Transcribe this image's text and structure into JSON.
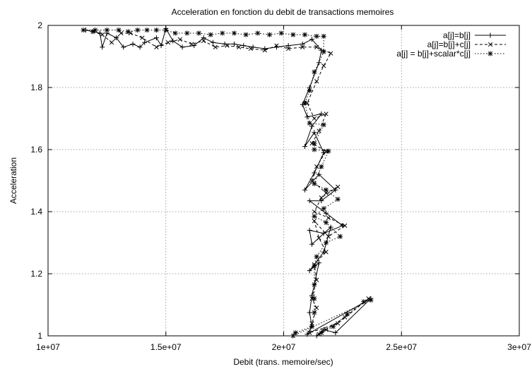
{
  "chart_data": {
    "type": "line",
    "title": "Acceleration en fonction du debit de transactions memoires",
    "xlabel": "Debit (trans. memoire/sec)",
    "ylabel": "Acceleration",
    "xlim": [
      10000000,
      30000000
    ],
    "ylim": [
      1,
      2
    ],
    "x_ticks": [
      10000000,
      15000000,
      20000000,
      25000000,
      30000000
    ],
    "x_tick_labels": [
      "1e+07",
      "1.5e+07",
      "2e+07",
      "2.5e+07",
      "3e+07"
    ],
    "y_ticks": [
      1,
      1.2,
      1.4,
      1.6,
      1.8,
      2
    ],
    "y_tick_labels": [
      "1",
      "1.2",
      "1.4",
      "1.6",
      "1.8",
      "2"
    ],
    "grid": true,
    "legend_position": "top-right",
    "series": [
      {
        "name": "a[j]=b[j]",
        "marker": "plus",
        "dash": "",
        "points": [
          [
            11600000,
            1.985
          ],
          [
            11900000,
            1.98
          ],
          [
            12200000,
            1.975
          ],
          [
            12300000,
            1.93
          ],
          [
            12500000,
            1.975
          ],
          [
            12900000,
            1.96
          ],
          [
            13200000,
            1.93
          ],
          [
            13600000,
            1.94
          ],
          [
            13900000,
            1.93
          ],
          [
            14100000,
            1.945
          ],
          [
            14600000,
            1.96
          ],
          [
            14800000,
            1.935
          ],
          [
            15000000,
            1.99
          ],
          [
            15300000,
            1.95
          ],
          [
            15700000,
            1.93
          ],
          [
            16200000,
            1.935
          ],
          [
            16600000,
            1.96
          ],
          [
            17000000,
            1.945
          ],
          [
            17500000,
            1.94
          ],
          [
            17900000,
            1.94
          ],
          [
            18300000,
            1.935
          ],
          [
            18700000,
            1.93
          ],
          [
            19200000,
            1.925
          ],
          [
            19700000,
            1.93
          ],
          [
            20200000,
            1.935
          ],
          [
            20800000,
            1.94
          ],
          [
            21200000,
            1.955
          ],
          [
            21600000,
            1.92
          ],
          [
            21500000,
            1.88
          ],
          [
            21100000,
            1.8
          ],
          [
            20800000,
            1.745
          ],
          [
            21000000,
            1.705
          ],
          [
            21600000,
            1.715
          ],
          [
            21200000,
            1.675
          ],
          [
            20900000,
            1.61
          ],
          [
            21300000,
            1.655
          ],
          [
            21700000,
            1.59
          ],
          [
            21300000,
            1.525
          ],
          [
            20900000,
            1.47
          ],
          [
            21500000,
            1.52
          ],
          [
            22200000,
            1.47
          ],
          [
            21600000,
            1.435
          ],
          [
            21100000,
            1.435
          ],
          [
            21800000,
            1.395
          ],
          [
            22500000,
            1.355
          ],
          [
            21700000,
            1.33
          ],
          [
            21100000,
            1.34
          ],
          [
            21200000,
            1.295
          ],
          [
            22000000,
            1.35
          ],
          [
            21700000,
            1.27
          ],
          [
            21100000,
            1.21
          ],
          [
            21500000,
            1.235
          ],
          [
            21200000,
            1.13
          ],
          [
            21100000,
            1.075
          ],
          [
            21200000,
            1.03
          ],
          [
            21000000,
            1.005
          ],
          [
            23700000,
            1.12
          ],
          [
            22200000,
            1.01
          ],
          [
            21700000,
            1.02
          ],
          [
            21400000,
            1.0
          ]
        ]
      },
      {
        "name": "a[j]=b[j]+c[j]",
        "marker": "cross",
        "dash": "4 3",
        "points": [
          [
            11900000,
            1.98
          ],
          [
            12300000,
            1.97
          ],
          [
            12700000,
            1.945
          ],
          [
            13100000,
            1.975
          ],
          [
            13500000,
            1.975
          ],
          [
            14000000,
            1.96
          ],
          [
            14600000,
            1.93
          ],
          [
            15100000,
            1.945
          ],
          [
            15600000,
            1.955
          ],
          [
            16100000,
            1.94
          ],
          [
            16600000,
            1.95
          ],
          [
            17100000,
            1.93
          ],
          [
            17600000,
            1.935
          ],
          [
            18100000,
            1.93
          ],
          [
            18600000,
            1.925
          ],
          [
            19200000,
            1.92
          ],
          [
            19700000,
            1.935
          ],
          [
            20200000,
            1.925
          ],
          [
            20800000,
            1.93
          ],
          [
            21400000,
            1.93
          ],
          [
            22000000,
            1.91
          ],
          [
            21700000,
            1.87
          ],
          [
            21400000,
            1.82
          ],
          [
            21000000,
            1.75
          ],
          [
            21300000,
            1.7
          ],
          [
            21800000,
            1.715
          ],
          [
            21500000,
            1.66
          ],
          [
            21200000,
            1.62
          ],
          [
            21800000,
            1.595
          ],
          [
            21400000,
            1.545
          ],
          [
            21200000,
            1.5
          ],
          [
            21800000,
            1.46
          ],
          [
            22300000,
            1.48
          ],
          [
            21600000,
            1.445
          ],
          [
            21300000,
            1.4
          ],
          [
            21900000,
            1.38
          ],
          [
            22600000,
            1.355
          ],
          [
            21900000,
            1.32
          ],
          [
            21300000,
            1.37
          ],
          [
            21500000,
            1.315
          ],
          [
            21800000,
            1.27
          ],
          [
            21300000,
            1.23
          ],
          [
            21400000,
            1.18
          ],
          [
            21200000,
            1.12
          ],
          [
            21400000,
            1.09
          ],
          [
            21200000,
            1.04
          ],
          [
            21100000,
            1.01
          ],
          [
            22300000,
            1.04
          ],
          [
            23600000,
            1.12
          ],
          [
            22600000,
            1.06
          ],
          [
            21800000,
            1.02
          ],
          [
            21500000,
            1.005
          ]
        ]
      },
      {
        "name": "a[j] = b[j]+scalar*c[j]",
        "marker": "star",
        "dash": "1.5 2.5",
        "points": [
          [
            11500000,
            1.985
          ],
          [
            12000000,
            1.985
          ],
          [
            12500000,
            1.985
          ],
          [
            13000000,
            1.985
          ],
          [
            13400000,
            1.98
          ],
          [
            13800000,
            1.985
          ],
          [
            14200000,
            1.985
          ],
          [
            14600000,
            1.985
          ],
          [
            15000000,
            1.985
          ],
          [
            15400000,
            1.975
          ],
          [
            15900000,
            1.975
          ],
          [
            16400000,
            1.975
          ],
          [
            16900000,
            1.97
          ],
          [
            17400000,
            1.975
          ],
          [
            17900000,
            1.975
          ],
          [
            18400000,
            1.97
          ],
          [
            18900000,
            1.975
          ],
          [
            19400000,
            1.97
          ],
          [
            19900000,
            1.975
          ],
          [
            20400000,
            1.97
          ],
          [
            20900000,
            1.97
          ],
          [
            21400000,
            1.965
          ],
          [
            21700000,
            1.965
          ],
          [
            21700000,
            1.915
          ],
          [
            21300000,
            1.85
          ],
          [
            21100000,
            1.79
          ],
          [
            20900000,
            1.75
          ],
          [
            21100000,
            1.685
          ],
          [
            21700000,
            1.68
          ],
          [
            21300000,
            1.62
          ],
          [
            21300000,
            1.6
          ],
          [
            21900000,
            1.595
          ],
          [
            21600000,
            1.545
          ],
          [
            21300000,
            1.49
          ],
          [
            21800000,
            1.47
          ],
          [
            22300000,
            1.44
          ],
          [
            21700000,
            1.41
          ],
          [
            21300000,
            1.385
          ],
          [
            21800000,
            1.365
          ],
          [
            22400000,
            1.32
          ],
          [
            21800000,
            1.3
          ],
          [
            21400000,
            1.255
          ],
          [
            21300000,
            1.225
          ],
          [
            21300000,
            1.165
          ],
          [
            21300000,
            1.12
          ],
          [
            21300000,
            1.075
          ],
          [
            21200000,
            1.03
          ],
          [
            20500000,
            1.01
          ],
          [
            20400000,
            1.0
          ],
          [
            23700000,
            1.115
          ],
          [
            23400000,
            1.11
          ],
          [
            22700000,
            1.07
          ],
          [
            22100000,
            1.03
          ],
          [
            21600000,
            1.01
          ]
        ]
      }
    ]
  }
}
